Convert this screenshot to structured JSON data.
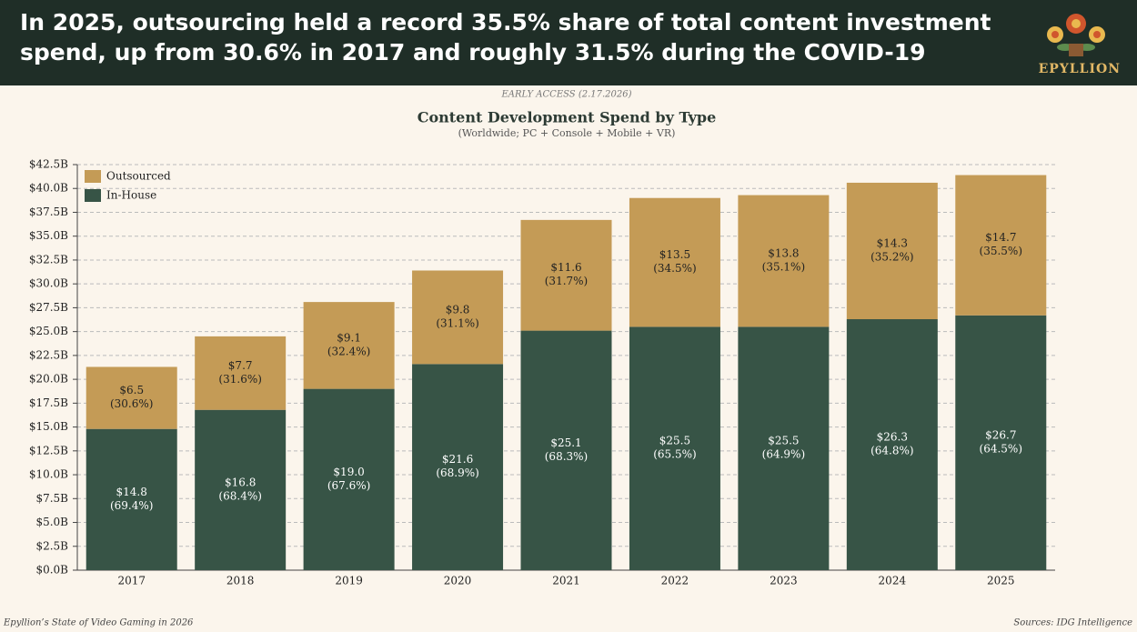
{
  "header": {
    "title": "In 2025, outsourcing held a record 35.5% share of total content investment spend, up from 30.6% in 2017 and roughly 31.5% during the COVID-19",
    "logo": "EPYLLION"
  },
  "footer": {
    "left": "Epyllion’s State of Video Gaming in 2026",
    "right": "Sources: IDG Intelligence"
  },
  "chart_data": {
    "type": "stacked_bar",
    "kicker": "EARLY ACCESS (2.17.2026)",
    "title": "Content Development Spend by Type",
    "subtitle": "(Worldwide; PC + Console + Mobile + VR)",
    "categories": [
      "2017",
      "2018",
      "2019",
      "2020",
      "2021",
      "2022",
      "2023",
      "2024",
      "2025"
    ],
    "series": [
      {
        "name": "In-House",
        "color": "#375446",
        "values": [
          14.8,
          16.8,
          19.0,
          21.6,
          25.1,
          25.5,
          25.5,
          26.3,
          26.7
        ],
        "value_labels": [
          "$14.8",
          "$16.8",
          "$19.0",
          "$21.6",
          "$25.1",
          "$25.5",
          "$25.5",
          "$26.3",
          "$26.7"
        ],
        "share_labels": [
          "(69.4%)",
          "(68.4%)",
          "(67.6%)",
          "(68.9%)",
          "(68.3%)",
          "(65.5%)",
          "(64.9%)",
          "(64.8%)",
          "(64.5%)"
        ]
      },
      {
        "name": "Outsourced",
        "color": "#c49b56",
        "values": [
          6.5,
          7.7,
          9.1,
          9.8,
          11.6,
          13.5,
          13.8,
          14.3,
          14.7
        ],
        "value_labels": [
          "$6.5",
          "$7.7",
          "$9.1",
          "$9.8",
          "$11.6",
          "$13.5",
          "$13.8",
          "$14.3",
          "$14.7"
        ],
        "share_labels": [
          "(30.6%)",
          "(31.6%)",
          "(32.4%)",
          "(31.1%)",
          "(31.7%)",
          "(34.5%)",
          "(35.1%)",
          "(35.2%)",
          "(35.5%)"
        ]
      }
    ],
    "ylim": [
      0,
      42.5
    ],
    "yticks": [
      {
        "value": 0,
        "label": "$0.0B"
      },
      {
        "value": 2.5,
        "label": "$2.5B"
      },
      {
        "value": 5,
        "label": "$5.0B"
      },
      {
        "value": 7.5,
        "label": "$7.5B"
      },
      {
        "value": 10,
        "label": "$10.0B"
      },
      {
        "value": 12.5,
        "label": "$12.5B"
      },
      {
        "value": 15,
        "label": "$15.0B"
      },
      {
        "value": 17.5,
        "label": "$17.5B"
      },
      {
        "value": 20,
        "label": "$20.0B"
      },
      {
        "value": 22.5,
        "label": "$22.5B"
      },
      {
        "value": 25,
        "label": "$25.0B"
      },
      {
        "value": 27.5,
        "label": "$27.5B"
      },
      {
        "value": 30,
        "label": "$30.0B"
      },
      {
        "value": 32.5,
        "label": "$32.5B"
      },
      {
        "value": 35,
        "label": "$35.0B"
      },
      {
        "value": 37.5,
        "label": "$37.5B"
      },
      {
        "value": 40,
        "label": "$40.0B"
      },
      {
        "value": 42.5,
        "label": "$42.5B"
      }
    ],
    "grid": true,
    "legend": "top-left"
  }
}
